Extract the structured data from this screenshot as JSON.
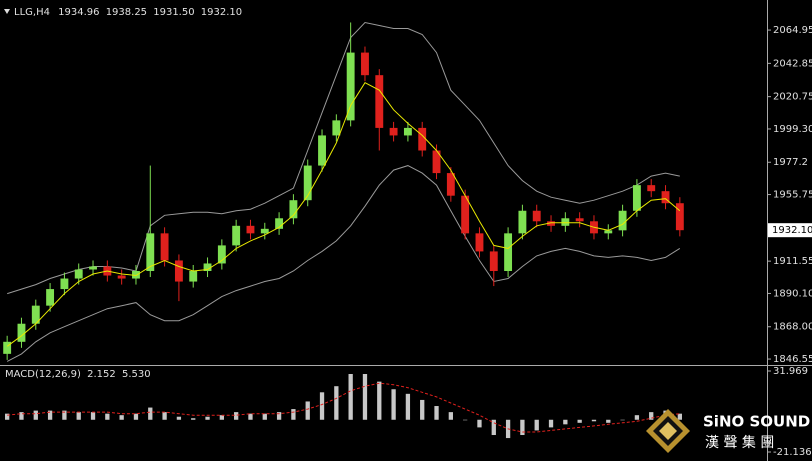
{
  "chart_data": [
    {
      "type": "candlestick",
      "title": "LLG,H4",
      "header_ohlc": [
        1934.96,
        1938.25,
        {
          "value": 1931.5,
          "label": "1931.50"
        },
        {
          "value": 1932.1,
          "label": "1932.10"
        }
      ],
      "open": [
        1850,
        1858,
        1870,
        1882,
        1893,
        1900,
        1906,
        1908,
        1902,
        1900,
        1905,
        1930,
        1912,
        1898,
        1905,
        1910,
        1922,
        1935,
        1930,
        1933,
        1940,
        1952,
        1975,
        1995,
        2005,
        2050,
        2035,
        2000,
        1995,
        2000,
        1985,
        1970,
        1955,
        1930,
        1918,
        1905,
        1930,
        1945,
        1938,
        1935,
        1940,
        1938,
        1930,
        1932,
        1945,
        1962,
        1958,
        1950
      ],
      "high": [
        1862,
        1874,
        1886,
        1897,
        1904,
        1910,
        1912,
        1912,
        1906,
        1909,
        1975,
        1934,
        1916,
        1909,
        1914,
        1926,
        1939,
        1939,
        1937,
        1944,
        1956,
        1979,
        1999,
        2009,
        2070,
        2054,
        2039,
        2004,
        2004,
        2004,
        1989,
        1974,
        1959,
        1934,
        1922,
        1934,
        1949,
        1949,
        1942,
        1944,
        1944,
        1942,
        1936,
        1949,
        1966,
        1966,
        1962,
        1954
      ],
      "low": [
        1846,
        1854,
        1866,
        1878,
        1889,
        1896,
        1902,
        1898,
        1896,
        1896,
        1901,
        1908,
        1885,
        1894,
        1901,
        1906,
        1918,
        1926,
        1926,
        1929,
        1936,
        1948,
        1971,
        1991,
        2001,
        2031,
        1985,
        1991,
        1991,
        1981,
        1966,
        1951,
        1926,
        1914,
        1895,
        1901,
        1926,
        1934,
        1931,
        1931,
        1934,
        1926,
        1926,
        1928,
        1941,
        1954,
        1946,
        1928
      ],
      "close": [
        1858,
        1870,
        1882,
        1893,
        1900,
        1906,
        1908,
        1902,
        1900,
        1905,
        1930,
        1912,
        1898,
        1905,
        1910,
        1922,
        1935,
        1930,
        1933,
        1940,
        1952,
        1975,
        1995,
        2005,
        2050,
        2035,
        2000,
        1995,
        2000,
        1985,
        1970,
        1955,
        1930,
        1918,
        1905,
        1930,
        1945,
        1938,
        1935,
        1940,
        1938,
        1930,
        1932,
        1945,
        1962,
        1958,
        1950,
        1932.1
      ],
      "up_color": "#7fe052",
      "down_color": "#e0211d",
      "band_upper": [
        1890,
        1893,
        1896,
        1900,
        1903,
        1906,
        1908,
        1908,
        1907,
        1905,
        1935,
        1942,
        1943,
        1944,
        1944,
        1943,
        1945,
        1946,
        1950,
        1955,
        1960,
        1985,
        2010,
        2035,
        2060,
        2070,
        2068,
        2066,
        2066,
        2062,
        2050,
        2025,
        2015,
        2005,
        1990,
        1975,
        1965,
        1958,
        1954,
        1952,
        1950,
        1952,
        1955,
        1958,
        1962,
        1968,
        1970,
        1968
      ],
      "band_lower": [
        1845,
        1850,
        1858,
        1864,
        1868,
        1872,
        1876,
        1880,
        1882,
        1884,
        1876,
        1872,
        1872,
        1876,
        1882,
        1888,
        1892,
        1895,
        1898,
        1900,
        1905,
        1912,
        1918,
        1925,
        1935,
        1948,
        1962,
        1972,
        1975,
        1970,
        1962,
        1945,
        1928,
        1912,
        1898,
        1900,
        1908,
        1915,
        1918,
        1920,
        1918,
        1915,
        1914,
        1915,
        1914,
        1912,
        1914,
        1920
      ],
      "band_color": "#9a9a9a",
      "ma": [
        1855,
        1862,
        1870,
        1880,
        1890,
        1898,
        1903,
        1905,
        1903,
        1902,
        1908,
        1912,
        1908,
        1905,
        1906,
        1912,
        1920,
        1925,
        1929,
        1934,
        1942,
        1955,
        1972,
        1990,
        2015,
        2030,
        2025,
        2012,
        2003,
        1995,
        1985,
        1972,
        1955,
        1938,
        1922,
        1920,
        1928,
        1935,
        1937,
        1937,
        1937,
        1934,
        1932,
        1936,
        1945,
        1952,
        1953,
        1945
      ],
      "ma_color": "#e8e800",
      "ylim": [
        1842.6,
        2079.6
      ],
      "yticks": [
        2064.95,
        2042.85,
        2020.75,
        {
          "value": 1999.3,
          "label": "1999.30"
        },
        1977.2,
        1955.75,
        1911.55,
        {
          "value": 1890.1,
          "label": "1890.10"
        },
        {
          "value": 1868,
          "label": "1868.00"
        },
        1846.55
      ],
      "current_price": {
        "value": 1932.1,
        "label": "1932.10"
      }
    },
    {
      "type": "bar",
      "title": "MACD(12,26,9)",
      "indicator_values": [
        2.152,
        {
          "value": 5.53,
          "label": "5.530"
        }
      ],
      "values": [
        4,
        5,
        6,
        6,
        6,
        5,
        5,
        4,
        3,
        4,
        8,
        5,
        2,
        1,
        2,
        3,
        5,
        4,
        4,
        5,
        7,
        12,
        18,
        22,
        30,
        30,
        25,
        20,
        17,
        13,
        9,
        5,
        0,
        -5,
        -10,
        -12,
        -10,
        -7,
        -5,
        -3,
        -2,
        -1,
        -2,
        0,
        3,
        5,
        6,
        4
      ],
      "color": "#c8c8c8",
      "signal": [
        3,
        4,
        4,
        5,
        5,
        5,
        5,
        5,
        4,
        4,
        5,
        5,
        4,
        3,
        3,
        3,
        3,
        4,
        4,
        4,
        5,
        7,
        10,
        14,
        19,
        22,
        24,
        23,
        21,
        18,
        15,
        11,
        7,
        3,
        -2,
        -6,
        -8,
        -8,
        -7,
        -6,
        -5,
        -4,
        -3,
        -2,
        -1,
        1,
        3,
        4
      ],
      "signal_color": "#e0211d",
      "ylim": [
        -21.136,
        31.969
      ],
      "yticks": [
        31.969,
        -21.136
      ]
    }
  ],
  "watermark": {
    "brand": "SiNO SOUND",
    "chinese": "漢 聲 集 團"
  }
}
